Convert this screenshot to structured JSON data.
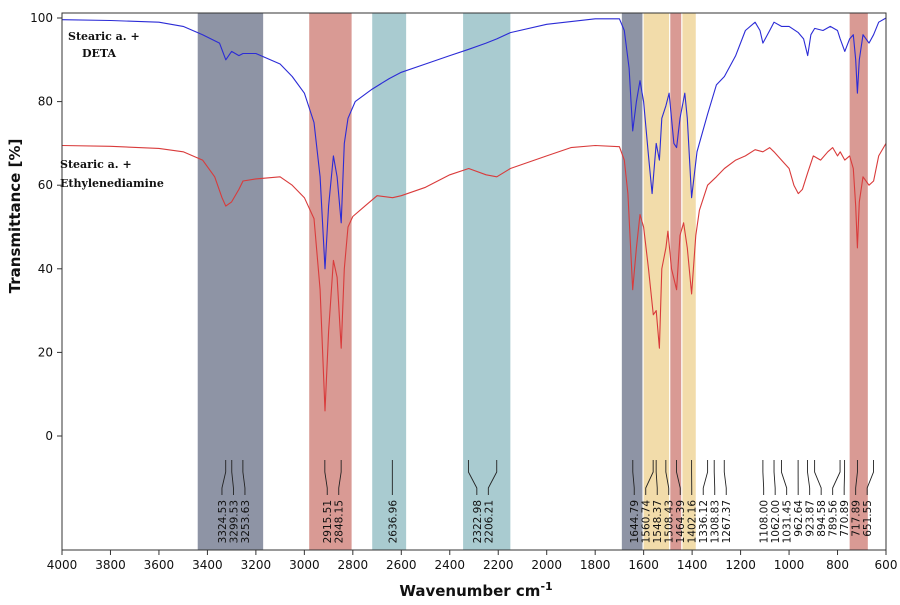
{
  "chart_data": {
    "type": "line",
    "xlabel": "Wavenumber cm",
    "xlabel_sup": "-1",
    "ylabel": "Transmittance [%]",
    "xlim": [
      4000,
      600
    ],
    "ylim": [
      0,
      100
    ],
    "x_reversed": true,
    "xticks": [
      4000,
      3800,
      3600,
      3400,
      3200,
      3000,
      2800,
      2600,
      2400,
      2200,
      2000,
      1800,
      1600,
      1400,
      1200,
      1000,
      800,
      600
    ],
    "yticks": [
      0,
      20,
      40,
      60,
      80,
      100
    ],
    "grid": false,
    "bands": [
      {
        "from": 3440,
        "to": 3170,
        "color": "#8e94a5"
      },
      {
        "from": 2980,
        "to": 2805,
        "color": "#d99a94"
      },
      {
        "from": 2720,
        "to": 2580,
        "color": "#a9cbd0"
      },
      {
        "from": 2345,
        "to": 2150,
        "color": "#a9cbd0"
      },
      {
        "from": 1690,
        "to": 1605,
        "color": "#8e94a5"
      },
      {
        "from": 1600,
        "to": 1495,
        "color": "#f2dcaa"
      },
      {
        "from": 1490,
        "to": 1445,
        "color": "#d99a94"
      },
      {
        "from": 1440,
        "to": 1385,
        "color": "#f2dcaa"
      },
      {
        "from": 750,
        "to": 675,
        "color": "#d99a94"
      }
    ],
    "peak_labels": [
      "3324.53",
      "3299.53",
      "3253.63",
      "2915.51",
      "2848.15",
      "2636.96",
      "2322.98",
      "2206.21",
      "1644.79",
      "1560.74",
      "1548.37",
      "1508.43",
      "1464.39",
      "1402.16",
      "1336.12",
      "1308.83",
      "1267.37",
      "1108.00",
      "1062.00",
      "1031.45",
      "962.64",
      "923.87",
      "894.58",
      "789.56",
      "770.89",
      "717.89",
      "651.55"
    ],
    "series": [
      {
        "name": "Stearic a. + DETA",
        "label_line1": "Stearic a. +",
        "label_line2": "DETA",
        "color": "#2b2bd6",
        "points": [
          [
            4000,
            99.6
          ],
          [
            3800,
            99.4
          ],
          [
            3600,
            99.0
          ],
          [
            3500,
            98.0
          ],
          [
            3420,
            96.0
          ],
          [
            3350,
            94.0
          ],
          [
            3324,
            90.0
          ],
          [
            3300,
            92.0
          ],
          [
            3270,
            91.0
          ],
          [
            3253,
            91.5
          ],
          [
            3200,
            91.5
          ],
          [
            3100,
            89.0
          ],
          [
            3050,
            86.0
          ],
          [
            3000,
            82.0
          ],
          [
            2960,
            75.0
          ],
          [
            2935,
            62.0
          ],
          [
            2915,
            40.0
          ],
          [
            2900,
            55.0
          ],
          [
            2880,
            67.0
          ],
          [
            2865,
            62.0
          ],
          [
            2848,
            51.0
          ],
          [
            2835,
            70.0
          ],
          [
            2820,
            76.0
          ],
          [
            2790,
            80.0
          ],
          [
            2720,
            83.0
          ],
          [
            2650,
            85.5
          ],
          [
            2600,
            87.0
          ],
          [
            2500,
            89.0
          ],
          [
            2400,
            91.0
          ],
          [
            2322,
            92.5
          ],
          [
            2250,
            94.0
          ],
          [
            2206,
            95.0
          ],
          [
            2150,
            96.5
          ],
          [
            2000,
            98.5
          ],
          [
            1800,
            99.8
          ],
          [
            1700,
            99.8
          ],
          [
            1680,
            97.0
          ],
          [
            1660,
            88.0
          ],
          [
            1645,
            73.0
          ],
          [
            1630,
            80.0
          ],
          [
            1615,
            85.0
          ],
          [
            1600,
            80.0
          ],
          [
            1580,
            67.0
          ],
          [
            1565,
            58.0
          ],
          [
            1548,
            70.0
          ],
          [
            1535,
            66.0
          ],
          [
            1525,
            76.0
          ],
          [
            1508,
            79.0
          ],
          [
            1495,
            82.0
          ],
          [
            1475,
            70.0
          ],
          [
            1464,
            69.0
          ],
          [
            1450,
            76.0
          ],
          [
            1430,
            82.0
          ],
          [
            1420,
            76.0
          ],
          [
            1402,
            57.0
          ],
          [
            1380,
            68.0
          ],
          [
            1336,
            77.0
          ],
          [
            1300,
            84.0
          ],
          [
            1267,
            86.0
          ],
          [
            1220,
            91.0
          ],
          [
            1180,
            97.0
          ],
          [
            1140,
            99.0
          ],
          [
            1120,
            97.0
          ],
          [
            1108,
            94.0
          ],
          [
            1080,
            97.0
          ],
          [
            1062,
            99.0
          ],
          [
            1031,
            98.0
          ],
          [
            1000,
            98.0
          ],
          [
            962,
            96.5
          ],
          [
            940,
            95.0
          ],
          [
            923,
            91.0
          ],
          [
            910,
            96.0
          ],
          [
            894,
            97.5
          ],
          [
            860,
            97.0
          ],
          [
            830,
            98.0
          ],
          [
            800,
            97.0
          ],
          [
            789,
            95.0
          ],
          [
            770,
            92.0
          ],
          [
            750,
            95.0
          ],
          [
            735,
            96.0
          ],
          [
            725,
            90.0
          ],
          [
            718,
            82.0
          ],
          [
            710,
            90.0
          ],
          [
            695,
            96.0
          ],
          [
            670,
            94.0
          ],
          [
            651,
            96.0
          ],
          [
            630,
            99.0
          ],
          [
            600,
            100.0
          ]
        ]
      },
      {
        "name": "Stearic a. + Ethylenediamine",
        "label_line1": "Stearic a. +",
        "label_line2": "Ethylenediamine",
        "color": "#d93b3b",
        "points": [
          [
            4000,
            69.5
          ],
          [
            3800,
            69.3
          ],
          [
            3600,
            68.8
          ],
          [
            3500,
            68.0
          ],
          [
            3420,
            66.0
          ],
          [
            3370,
            62.0
          ],
          [
            3340,
            57.0
          ],
          [
            3324,
            55.0
          ],
          [
            3300,
            56.0
          ],
          [
            3270,
            59.0
          ],
          [
            3253,
            61.0
          ],
          [
            3200,
            61.5
          ],
          [
            3100,
            62.0
          ],
          [
            3050,
            60.0
          ],
          [
            3000,
            57.0
          ],
          [
            2960,
            52.0
          ],
          [
            2935,
            35.0
          ],
          [
            2915,
            6.0
          ],
          [
            2900,
            25.0
          ],
          [
            2880,
            42.0
          ],
          [
            2865,
            38.0
          ],
          [
            2848,
            21.0
          ],
          [
            2835,
            40.0
          ],
          [
            2820,
            50.0
          ],
          [
            2800,
            52.5
          ],
          [
            2750,
            55.0
          ],
          [
            2700,
            57.5
          ],
          [
            2636,
            57.0
          ],
          [
            2600,
            57.5
          ],
          [
            2500,
            59.5
          ],
          [
            2400,
            62.5
          ],
          [
            2322,
            64.0
          ],
          [
            2250,
            62.5
          ],
          [
            2206,
            62.0
          ],
          [
            2150,
            64.0
          ],
          [
            2000,
            67.0
          ],
          [
            1900,
            69.0
          ],
          [
            1800,
            69.5
          ],
          [
            1700,
            69.2
          ],
          [
            1680,
            66.0
          ],
          [
            1665,
            58.0
          ],
          [
            1645,
            35.0
          ],
          [
            1630,
            45.0
          ],
          [
            1615,
            53.0
          ],
          [
            1600,
            50.0
          ],
          [
            1580,
            40.0
          ],
          [
            1560,
            29.0
          ],
          [
            1548,
            30.0
          ],
          [
            1535,
            21.0
          ],
          [
            1525,
            40.0
          ],
          [
            1508,
            45.0
          ],
          [
            1500,
            49.0
          ],
          [
            1485,
            40.0
          ],
          [
            1464,
            35.0
          ],
          [
            1450,
            48.0
          ],
          [
            1435,
            51.0
          ],
          [
            1420,
            45.0
          ],
          [
            1402,
            34.0
          ],
          [
            1385,
            48.0
          ],
          [
            1370,
            54.0
          ],
          [
            1336,
            60.0
          ],
          [
            1300,
            62.0
          ],
          [
            1267,
            64.0
          ],
          [
            1220,
            66.0
          ],
          [
            1180,
            67.0
          ],
          [
            1140,
            68.5
          ],
          [
            1108,
            68.0
          ],
          [
            1080,
            69.0
          ],
          [
            1062,
            68.0
          ],
          [
            1031,
            66.0
          ],
          [
            1000,
            64.0
          ],
          [
            980,
            60.0
          ],
          [
            962,
            58.0
          ],
          [
            945,
            59.0
          ],
          [
            923,
            63.0
          ],
          [
            900,
            67.0
          ],
          [
            870,
            66.0
          ],
          [
            840,
            68.0
          ],
          [
            820,
            69.0
          ],
          [
            800,
            67.0
          ],
          [
            789,
            68.0
          ],
          [
            770,
            66.0
          ],
          [
            750,
            67.0
          ],
          [
            735,
            64.0
          ],
          [
            725,
            55.0
          ],
          [
            718,
            45.0
          ],
          [
            710,
            56.0
          ],
          [
            695,
            62.0
          ],
          [
            670,
            60.0
          ],
          [
            651,
            61.0
          ],
          [
            630,
            67.0
          ],
          [
            600,
            70.0
          ]
        ]
      }
    ]
  }
}
